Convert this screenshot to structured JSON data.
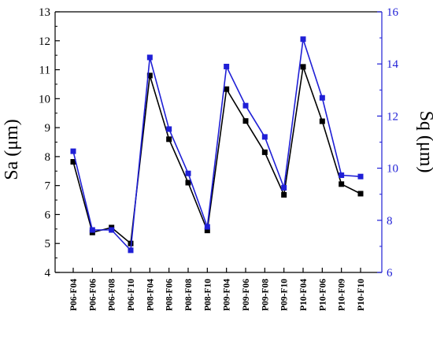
{
  "chart_data": {
    "type": "line",
    "categories": [
      "P06-F04",
      "P06-F06",
      "P06-F08",
      "P06-F10",
      "P08-F04",
      "P08-F06",
      "P08-F08",
      "P08-F10",
      "P09-F04",
      "P09-F06",
      "P09-F08",
      "P09-F10",
      "P10-F04",
      "P10-F06",
      "P10-F09",
      "P10-F10"
    ],
    "ylabel_left": "Sa (μm)",
    "ylabel_right": "Sq (μm)",
    "ylim_left": [
      4,
      13
    ],
    "ylim_right": [
      6,
      16
    ],
    "yticks_left": [
      "4",
      "5",
      "6",
      "7",
      "8",
      "9",
      "10",
      "11",
      "12",
      "13"
    ],
    "yticks_right": [
      "6",
      "8",
      "10",
      "12",
      "14",
      "16"
    ],
    "grid": false,
    "series": [
      {
        "axis": "left",
        "color": "#000000",
        "marker": "square",
        "values": [
          7.82,
          5.38,
          5.55,
          5.0,
          10.8,
          8.6,
          7.1,
          5.45,
          10.33,
          9.23,
          8.15,
          6.68,
          11.1,
          9.22,
          7.05,
          6.72
        ]
      },
      {
        "axis": "right",
        "color": "#1f1fd6",
        "marker": "square",
        "values": [
          10.65,
          7.63,
          7.63,
          6.85,
          14.25,
          11.5,
          9.8,
          7.75,
          13.9,
          12.4,
          11.2,
          9.25,
          14.95,
          12.7,
          9.73,
          9.68
        ]
      }
    ]
  }
}
